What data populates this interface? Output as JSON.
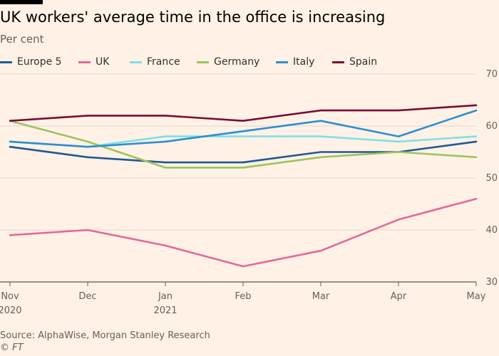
{
  "title": "UK workers' average time in the office is increasing",
  "subtitle": "Per cent",
  "source": "Source: AlphaWise, Morgan Stanley Research",
  "credit": "© FT",
  "colors": {
    "background": "#fff1e5",
    "grid": "#e2d7cc"
  },
  "chart_data": {
    "type": "line",
    "title": "UK workers' average time in the office is increasing",
    "ylabel": "Per cent",
    "categories": [
      "Nov 2020",
      "Dec",
      "Jan 2021",
      "Feb",
      "Mar",
      "Apr",
      "May"
    ],
    "x_tick_labels": [
      {
        "line1": "Nov",
        "line2": "2020"
      },
      {
        "line1": "Dec",
        "line2": ""
      },
      {
        "line1": "Jan",
        "line2": "2021"
      },
      {
        "line1": "Feb",
        "line2": ""
      },
      {
        "line1": "Mar",
        "line2": ""
      },
      {
        "line1": "Apr",
        "line2": ""
      },
      {
        "line1": "May",
        "line2": ""
      }
    ],
    "ylim": [
      30,
      70
    ],
    "yticks": [
      30,
      40,
      50,
      60,
      70
    ],
    "grid": true,
    "legend_position": "top-left",
    "series": [
      {
        "name": "Europe 5",
        "color": "#1f5993",
        "values": [
          56,
          54,
          53,
          53,
          55,
          55,
          57
        ]
      },
      {
        "name": "UK",
        "color": "#e5679a",
        "values": [
          39,
          40,
          37,
          33,
          36,
          42,
          46
        ]
      },
      {
        "name": "France",
        "color": "#7ee0e6",
        "values": [
          57,
          56,
          58,
          58,
          58,
          57,
          58
        ]
      },
      {
        "name": "Germany",
        "color": "#9dc35f",
        "values": [
          61,
          57,
          52,
          52,
          54,
          55,
          54
        ]
      },
      {
        "name": "Italy",
        "color": "#2b8fd0",
        "values": [
          57,
          56,
          57,
          59,
          61,
          58,
          63
        ]
      },
      {
        "name": "Spain",
        "color": "#7a0d33",
        "values": [
          61,
          62,
          62,
          61,
          63,
          63,
          64
        ]
      }
    ]
  }
}
